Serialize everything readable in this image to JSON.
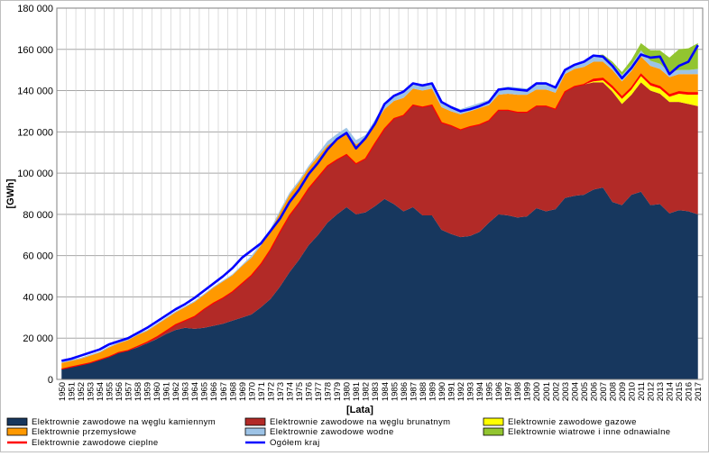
{
  "chart_data": {
    "type": "area",
    "stacked": true,
    "title": "",
    "xlabel": "[Lata]",
    "ylabel": "[GWh]",
    "ylim": [
      0,
      180000
    ],
    "yticks": [
      0,
      20000,
      40000,
      60000,
      80000,
      100000,
      120000,
      140000,
      160000,
      180000
    ],
    "ytick_labels": [
      "0",
      "20 000",
      "40 000",
      "60 000",
      "80 000",
      "100 000",
      "120 000",
      "140 000",
      "160 000",
      "180 000"
    ],
    "grid": true,
    "legend_position": "bottom",
    "x": [
      1950,
      1951,
      1952,
      1953,
      1954,
      1955,
      1956,
      1957,
      1958,
      1959,
      1960,
      1961,
      1962,
      1963,
      1964,
      1965,
      1966,
      1967,
      1968,
      1969,
      1970,
      1971,
      1972,
      1973,
      1974,
      1975,
      1976,
      1977,
      1978,
      1979,
      1980,
      1981,
      1982,
      1983,
      1984,
      1985,
      1986,
      1987,
      1988,
      1989,
      1990,
      1991,
      1992,
      1993,
      1994,
      1995,
      1996,
      1997,
      1998,
      1999,
      2000,
      2001,
      2002,
      2003,
      2004,
      2005,
      2006,
      2007,
      2008,
      2009,
      2010,
      2011,
      2012,
      2013,
      2014,
      2015,
      2016,
      2017
    ],
    "series": [
      {
        "name": "Elektrownie zawodowe na węglu kamiennym",
        "color": "#17375e",
        "values": [
          5000,
          6000,
          7000,
          8000,
          9500,
          11000,
          13000,
          14000,
          15500,
          17500,
          19500,
          22000,
          24000,
          25000,
          24500,
          25000,
          26000,
          27000,
          28500,
          30000,
          31500,
          35000,
          39000,
          45000,
          52000,
          58000,
          65000,
          70000,
          76000,
          80000,
          83500,
          80000,
          81000,
          84000,
          87500,
          85000,
          81500,
          83500,
          79500,
          79500,
          72500,
          70500,
          69000,
          69500,
          71500,
          76000,
          80000,
          79500,
          78500,
          79000,
          83000,
          81500,
          82500,
          88000,
          89000,
          89500,
          92000,
          93000,
          86000,
          84500,
          89500,
          91000,
          84500,
          85000,
          80500,
          82000,
          81500,
          80000
        ]
      },
      {
        "name": "Elektrownie zawodowe na węglu brunatnym",
        "color": "#b22a27",
        "values": [
          0,
          0,
          0,
          0,
          0,
          0,
          0,
          0,
          500,
          500,
          1000,
          1500,
          2500,
          3500,
          6000,
          9000,
          11000,
          12500,
          14000,
          16500,
          19000,
          21000,
          24000,
          26500,
          27500,
          27500,
          27500,
          28000,
          27500,
          26500,
          25500,
          24500,
          26000,
          30500,
          34000,
          41500,
          46500,
          49500,
          52500,
          53500,
          52000,
          52500,
          52000,
          53000,
          52000,
          49500,
          50500,
          51000,
          51000,
          50500,
          49500,
          51000,
          48500,
          51500,
          53000,
          53500,
          52000,
          51000,
          53500,
          49000,
          48500,
          53000,
          55500,
          53500,
          54000,
          52500,
          52000,
          52500
        ]
      },
      {
        "name": "Elektrownie zawodowe gazowe",
        "color": "#ffff00",
        "values": [
          0,
          0,
          0,
          0,
          0,
          0,
          0,
          0,
          0,
          0,
          0,
          0,
          0,
          0,
          0,
          0,
          0,
          0,
          0,
          0,
          0,
          0,
          0,
          0,
          0,
          0,
          0,
          0,
          0,
          0,
          0,
          0,
          0,
          0,
          0,
          0,
          0,
          0,
          0,
          0,
          0,
          0,
          0,
          0,
          0,
          0,
          0,
          0,
          0,
          0,
          0,
          0,
          0,
          0,
          0,
          0,
          500,
          1000,
          1500,
          2500,
          2500,
          3000,
          2500,
          2500,
          2500,
          4000,
          4500,
          5500
        ]
      },
      {
        "name": "Elektrownie zawodowe cieplne",
        "color": "#ff0000",
        "values": [
          0,
          0,
          0,
          0,
          0,
          0,
          0,
          0,
          0,
          0,
          0,
          0,
          0,
          0,
          0,
          0,
          0,
          0,
          0,
          0,
          0,
          0,
          0,
          0,
          0,
          0,
          0,
          0,
          0,
          0,
          0,
          0,
          0,
          0,
          0,
          0,
          0,
          0,
          0,
          0,
          0,
          0,
          0,
          0,
          0,
          0,
          0,
          0,
          0,
          0,
          0,
          0,
          0,
          0,
          0,
          0,
          1000,
          1000,
          1000,
          1000,
          1000,
          1000,
          1000,
          1000,
          1000,
          1000,
          1000,
          1000
        ]
      },
      {
        "name": "Elektrownie przemysłowe",
        "color": "#ff9900",
        "values": [
          3000,
          3000,
          3000,
          3500,
          3500,
          4500,
          4500,
          5000,
          5500,
          5500,
          6000,
          6000,
          6000,
          6500,
          7000,
          7000,
          7500,
          8000,
          8000,
          8500,
          8500,
          9000,
          9000,
          9500,
          10000,
          10000,
          10000,
          10000,
          10000,
          10000,
          10500,
          9500,
          9500,
          9500,
          9500,
          8500,
          8500,
          8000,
          8000,
          8000,
          7500,
          7000,
          7500,
          7500,
          8000,
          7500,
          7500,
          8000,
          8500,
          8500,
          8000,
          8000,
          8000,
          8500,
          8500,
          8500,
          8500,
          8000,
          8000,
          7500,
          8000,
          8500,
          8500,
          8500,
          8500,
          8500,
          9000,
          9000
        ]
      },
      {
        "name": "Elektrownie zawodowe wodne",
        "color": "#9dc3e6",
        "values": [
          500,
          500,
          500,
          500,
          500,
          500,
          500,
          500,
          500,
          500,
          500,
          500,
          500,
          500,
          500,
          500,
          500,
          500,
          500,
          500,
          1000,
          1000,
          1000,
          1000,
          1000,
          1000,
          1000,
          1500,
          2000,
          2500,
          2500,
          2000,
          2000,
          2000,
          2500,
          3000,
          3000,
          3000,
          3000,
          2500,
          2500,
          2500,
          2500,
          2500,
          2500,
          2500,
          3000,
          3500,
          3500,
          3000,
          3500,
          3500,
          3000,
          2500,
          2500,
          3000,
          3000,
          3000,
          3000,
          3000,
          3000,
          3000,
          2500,
          2500,
          2500,
          2000,
          2000,
          2500
        ]
      },
      {
        "name": "Elektrownie wiatrowe i inne odnawialne",
        "color": "#92c530",
        "values": [
          0,
          0,
          0,
          0,
          0,
          0,
          0,
          0,
          0,
          0,
          0,
          0,
          0,
          0,
          0,
          0,
          0,
          0,
          0,
          0,
          0,
          0,
          0,
          0,
          0,
          0,
          0,
          0,
          0,
          0,
          0,
          0,
          0,
          0,
          0,
          0,
          0,
          0,
          0,
          0,
          0,
          0,
          0,
          0,
          0,
          0,
          0,
          0,
          0,
          0,
          0,
          0,
          0,
          0,
          0,
          0,
          0,
          500,
          1000,
          1500,
          2500,
          3500,
          5000,
          6500,
          7000,
          10000,
          10500,
          12500
        ]
      },
      {
        "name": "Ogółem kraj",
        "color": "#0000ff",
        "kind": "line",
        "values": [
          9000,
          10000,
          11500,
          13000,
          14500,
          17000,
          18500,
          20000,
          22500,
          25000,
          28000,
          31000,
          34000,
          36500,
          39500,
          43000,
          46500,
          50000,
          54000,
          59000,
          62500,
          66000,
          72000,
          78000,
          86000,
          92000,
          99500,
          105000,
          111500,
          116500,
          119500,
          112000,
          117000,
          124000,
          133500,
          137500,
          139500,
          143500,
          142500,
          143500,
          134500,
          132000,
          130000,
          131000,
          132500,
          134500,
          140500,
          141000,
          140500,
          140000,
          143500,
          143500,
          141500,
          150000,
          152500,
          154000,
          157000,
          156500,
          152000,
          146000,
          151000,
          157500,
          156000,
          156500,
          148000,
          152000,
          154000,
          162000
        ]
      }
    ]
  },
  "legend": {
    "items": [
      {
        "label": "Elektrownie zawodowe na węglu kamiennym",
        "color": "#17375e",
        "kind": "box"
      },
      {
        "label": "Elektrownie zawodowe na węglu brunatnym",
        "color": "#b22a27",
        "kind": "box"
      },
      {
        "label": "Elektrownie zawodowe gazowe",
        "color": "#ffff00",
        "kind": "box"
      },
      {
        "label": "Elektrownie przemysłowe",
        "color": "#ff9900",
        "kind": "box"
      },
      {
        "label": "Elektrownie zawodowe wodne",
        "color": "#9dc3e6",
        "kind": "box"
      },
      {
        "label": "Elektrownie wiatrowe i inne odnawialne",
        "color": "#92c530",
        "kind": "box"
      },
      {
        "label": "Elektrownie zawodowe cieplne",
        "color": "#ff0000",
        "kind": "line"
      },
      {
        "label": "Ogółem kraj",
        "color": "#0000ff",
        "kind": "line"
      }
    ]
  }
}
